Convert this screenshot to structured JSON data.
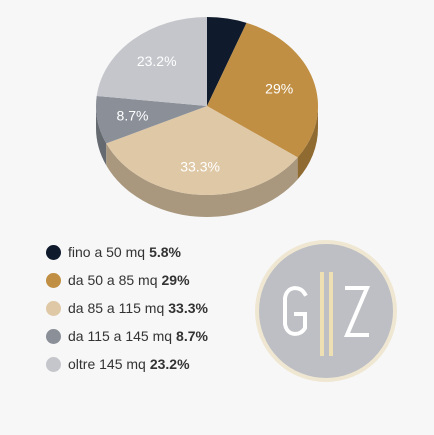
{
  "chart_data": {
    "type": "pie",
    "title": "",
    "series": [
      {
        "name": "fino a 50 mq",
        "value": 5.8,
        "slice_label": "",
        "legend_value": "5.8%",
        "color": "#0f1b2d",
        "side_color": "#0a121e"
      },
      {
        "name": "da 50 a 85 mq",
        "value": 29,
        "slice_label": "29%",
        "legend_value": "29%",
        "color": "#c08f43",
        "side_color": "#8f6a31"
      },
      {
        "name": "da 85 a 115 mq",
        "value": 33.3,
        "slice_label": "33.3%",
        "legend_value": "33.3%",
        "color": "#dfc8a6",
        "side_color": "#a9987e"
      },
      {
        "name": "da 115 a 145 mq",
        "value": 8.7,
        "slice_label": "8.7%",
        "legend_value": "8.7%",
        "color": "#8a8f98",
        "side_color": "#656a71"
      },
      {
        "name": "oltre 145 mq",
        "value": 23.2,
        "slice_label": "23.2%",
        "legend_value": "23.2%",
        "color": "#c4c6cb",
        "side_color": "#94969a"
      }
    ],
    "legend_position": "bottom-left"
  },
  "logo": {
    "icon": "gz-monogram-logo",
    "letters": "G Z",
    "background_color": "#bdbfc4",
    "ring_color": "#efe7d2",
    "bar_color": "#efe0b4"
  }
}
